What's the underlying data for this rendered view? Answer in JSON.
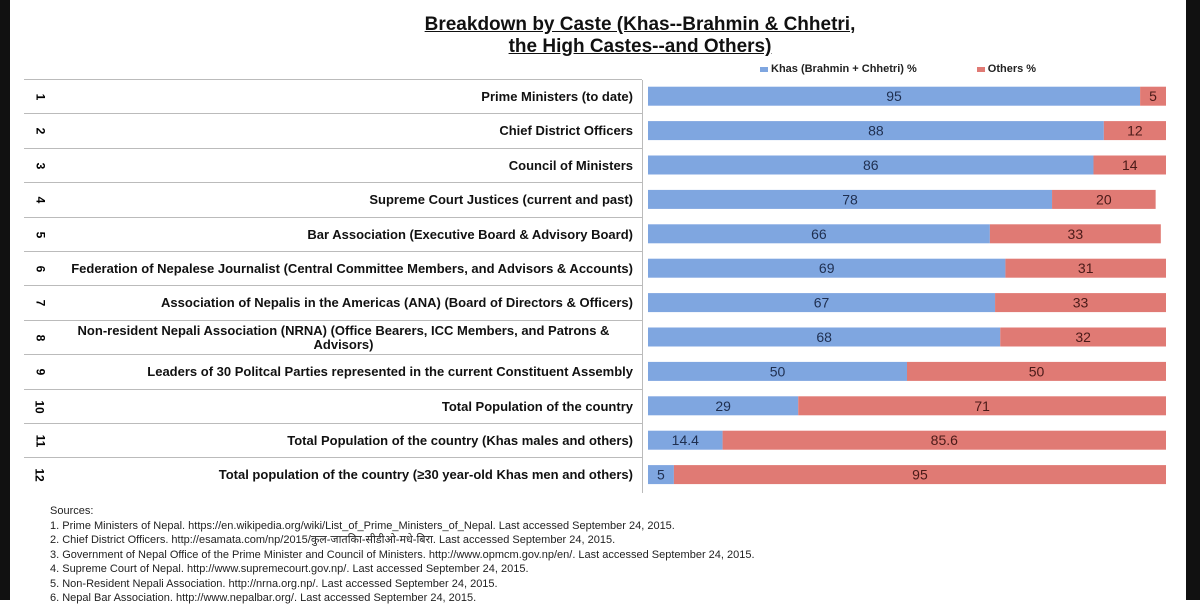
{
  "chart_data": {
    "type": "bar",
    "stacked": true,
    "orientation": "horizontal",
    "title_lines": [
      "Breakdown by Caste (Khas--Brahmin & Chhetri,",
      "the High Castes--and Others)"
    ],
    "categories": [
      "Prime Ministers (to date)",
      "Chief District Officers",
      "Council of Ministers",
      "Supreme Court Justices (current and past)",
      "Bar Association (Executive Board & Advisory Board)",
      "Federation of Nepalese Journalist (Central Committee Members, and Advisors & Accounts)",
      "Association of Nepalis in the Americas (ANA) (Board of Directors & Officers)",
      "Non-resident Nepali Association (NRNA) (Office Bearers, ICC Members, and Patrons & Advisors)",
      "Leaders of 30 Politcal Parties represented in the current Constituent Assembly",
      "Total Population of the country",
      "Total Population of the country (Khas males and others)",
      "Total population of the country (≥30 year-old Khas men and others)"
    ],
    "row_numbers": [
      "1",
      "2",
      "3",
      "4",
      "5",
      "6",
      "7",
      "8",
      "9",
      "10",
      "11",
      "12"
    ],
    "series": [
      {
        "name": "Khas (Brahmin + Chhetri) %",
        "color": "#7fa6e0",
        "values": [
          95,
          88,
          86,
          78,
          66,
          69,
          67,
          68,
          50,
          29,
          14.4,
          5
        ],
        "labels": [
          "95",
          "88",
          "86",
          "78",
          "66",
          "69",
          "67",
          "68",
          "50",
          "29",
          "14.4",
          "5"
        ]
      },
      {
        "name": "Others %",
        "color": "#e07a74",
        "values": [
          5,
          12,
          14,
          20,
          33,
          31,
          33,
          32,
          50,
          71,
          85.6,
          95
        ],
        "labels": [
          "5",
          "12",
          "14",
          "20",
          "33",
          "31",
          "33",
          "32",
          "50",
          "71",
          "85.6",
          "95"
        ]
      }
    ],
    "xlim": [
      0,
      100
    ],
    "legend": "top-right"
  },
  "sources": {
    "heading": "Sources:",
    "items": [
      "1. Prime Ministers of Nepal. https://en.wikipedia.org/wiki/List_of_Prime_Ministers_of_Nepal. Last accessed September 24, 2015.",
      "2. Chief District Officers. http://esamata.com/np/2015/कुल-जातकिा-सीडीओ-मधे-बिरा. Last accessed September 24, 2015.",
      "3. Government of Nepal Office of the Prime Minister and Council of Ministers. http://www.opmcm.gov.np/en/. Last accessed September 24, 2015.",
      "4. Supreme Court of Nepal. http://www.supremecourt.gov.np/. Last accessed September 24, 2015.",
      "5. Non-Resident Nepali Association. http://nrna.org.np/. Last accessed September 24, 2015.",
      "6. Nepal Bar Association. http://www.nepalbar.org/. Last accessed September 24, 2015."
    ]
  }
}
